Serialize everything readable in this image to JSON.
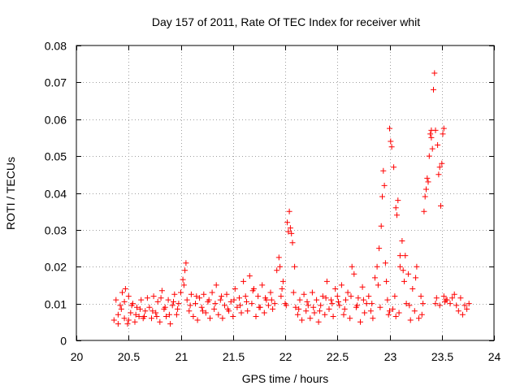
{
  "chart_data": {
    "type": "scatter",
    "title": "Day 157 of 2011, Rate Of TEC Index for receiver whit",
    "xlabel": "GPS time / hours",
    "ylabel": "ROTI / TECUs",
    "xlim": [
      20,
      24
    ],
    "ylim": [
      0,
      0.08
    ],
    "xticks": [
      20,
      20.5,
      21,
      21.5,
      22,
      22.5,
      23,
      23.5,
      24
    ],
    "xtick_labels": [
      "20",
      "20.5",
      "21",
      "21.5",
      "22",
      "22.5",
      "23",
      "23.5",
      "24"
    ],
    "yticks": [
      0,
      0.01,
      0.02,
      0.03,
      0.04,
      0.05,
      0.06,
      0.07,
      0.08
    ],
    "ytick_labels": [
      "0",
      "0.01",
      "0.02",
      "0.03",
      "0.04",
      "0.05",
      "0.06",
      "0.07",
      "0.08"
    ],
    "grid": true,
    "marker": "+",
    "series": [
      {
        "name": "ROTI",
        "color": "#ff0000",
        "x": [
          20.36,
          20.38,
          20.4,
          20.42,
          20.44,
          20.46,
          20.47,
          20.49,
          20.5,
          20.52,
          20.54,
          20.56,
          20.58,
          20.6,
          20.62,
          20.64,
          20.66,
          20.68,
          20.4,
          20.43,
          20.46,
          20.5,
          20.53,
          20.57,
          20.61,
          20.65,
          20.7,
          20.72,
          20.74,
          20.76,
          20.78,
          20.8,
          20.82,
          20.84,
          20.86,
          20.88,
          20.9,
          20.92,
          20.94,
          20.96,
          20.98,
          20.73,
          20.77,
          20.81,
          20.85,
          20.89,
          20.93,
          20.97,
          21.0,
          21.02,
          21.04,
          21.05,
          21.06,
          21.08,
          21.1,
          21.12,
          21.14,
          21.16,
          21.18,
          21.2,
          21.22,
          21.24,
          21.26,
          21.28,
          21.03,
          21.09,
          21.15,
          21.21,
          21.27,
          21.3,
          21.32,
          21.34,
          21.36,
          21.38,
          21.4,
          21.42,
          21.44,
          21.46,
          21.48,
          21.5,
          21.52,
          21.54,
          21.56,
          21.58,
          21.33,
          21.39,
          21.45,
          21.51,
          21.57,
          21.6,
          21.62,
          21.64,
          21.66,
          21.68,
          21.7,
          21.72,
          21.74,
          21.76,
          21.78,
          21.8,
          21.82,
          21.84,
          21.86,
          21.88,
          21.9,
          21.63,
          21.69,
          21.75,
          21.81,
          21.87,
          21.92,
          21.94,
          21.95,
          21.96,
          21.98,
          22.0,
          22.02,
          22.03,
          22.04,
          22.05,
          22.06,
          22.07,
          22.08,
          22.1,
          22.12,
          22.14,
          22.16,
          21.97,
          22.01,
          22.09,
          22.13,
          22.18,
          22.2,
          22.22,
          22.24,
          22.26,
          22.28,
          22.3,
          22.32,
          22.34,
          22.36,
          22.38,
          22.4,
          22.42,
          22.44,
          22.46,
          22.21,
          22.27,
          22.33,
          22.39,
          22.45,
          22.48,
          22.5,
          22.52,
          22.54,
          22.56,
          22.58,
          22.6,
          22.62,
          22.64,
          22.66,
          22.68,
          22.7,
          22.72,
          22.74,
          22.76,
          22.78,
          22.51,
          22.57,
          22.63,
          22.69,
          22.75,
          22.8,
          22.82,
          22.84,
          22.86,
          22.88,
          22.9,
          22.92,
          22.93,
          22.94,
          22.95,
          22.96,
          22.97,
          22.98,
          22.99,
          23.0,
          23.01,
          23.02,
          23.03,
          23.04,
          23.05,
          23.06,
          23.07,
          23.08,
          23.09,
          23.1,
          22.83,
          22.89,
          22.91,
          23.0,
          23.06,
          23.1,
          23.12,
          23.14,
          23.15,
          23.16,
          23.18,
          23.2,
          23.22,
          23.24,
          23.26,
          23.28,
          23.3,
          23.32,
          23.33,
          23.34,
          23.35,
          23.36,
          23.37,
          23.38,
          23.39,
          23.4,
          23.13,
          23.19,
          23.25,
          23.31,
          23.4,
          23.41,
          23.42,
          23.43,
          23.44,
          23.45,
          23.46,
          23.47,
          23.48,
          23.49,
          23.5,
          23.51,
          23.52,
          23.53,
          23.54,
          23.44,
          23.48,
          23.52,
          23.55,
          23.58,
          23.6,
          23.62,
          23.64,
          23.66,
          23.68,
          23.7,
          23.72,
          23.74,
          23.76
        ],
        "y": [
          0.0055,
          0.011,
          0.0045,
          0.0095,
          0.013,
          0.006,
          0.014,
          0.0045,
          0.012,
          0.0075,
          0.01,
          0.005,
          0.009,
          0.0065,
          0.011,
          0.006,
          0.008,
          0.0115,
          0.007,
          0.0085,
          0.0105,
          0.0055,
          0.0095,
          0.007,
          0.0085,
          0.0065,
          0.009,
          0.006,
          0.012,
          0.0075,
          0.0105,
          0.005,
          0.0135,
          0.0085,
          0.0065,
          0.011,
          0.0045,
          0.0095,
          0.0125,
          0.007,
          0.01,
          0.008,
          0.0065,
          0.0115,
          0.009,
          0.007,
          0.0105,
          0.0085,
          0.013,
          0.0165,
          0.019,
          0.021,
          0.011,
          0.008,
          0.0125,
          0.0065,
          0.01,
          0.0055,
          0.0115,
          0.009,
          0.0125,
          0.0075,
          0.0105,
          0.006,
          0.015,
          0.0095,
          0.012,
          0.008,
          0.011,
          0.013,
          0.0085,
          0.015,
          0.007,
          0.011,
          0.006,
          0.0095,
          0.0125,
          0.008,
          0.0105,
          0.0065,
          0.014,
          0.009,
          0.0115,
          0.0075,
          0.01,
          0.012,
          0.0085,
          0.011,
          0.0095,
          0.016,
          0.012,
          0.008,
          0.0175,
          0.01,
          0.014,
          0.0065,
          0.012,
          0.009,
          0.015,
          0.0075,
          0.011,
          0.0095,
          0.013,
          0.0085,
          0.01,
          0.0105,
          0.0135,
          0.009,
          0.0115,
          0.011,
          0.019,
          0.0225,
          0.02,
          0.012,
          0.016,
          0.01,
          0.032,
          0.0295,
          0.035,
          0.0305,
          0.029,
          0.0265,
          0.013,
          0.009,
          0.007,
          0.011,
          0.0055,
          0.014,
          0.0095,
          0.02,
          0.0085,
          0.0125,
          0.008,
          0.0095,
          0.006,
          0.013,
          0.0075,
          0.011,
          0.005,
          0.0095,
          0.012,
          0.007,
          0.016,
          0.0085,
          0.011,
          0.0065,
          0.0105,
          0.009,
          0.008,
          0.0115,
          0.01,
          0.014,
          0.012,
          0.0095,
          0.015,
          0.007,
          0.011,
          0.013,
          0.006,
          0.02,
          0.018,
          0.009,
          0.0115,
          0.005,
          0.0145,
          0.0075,
          0.01,
          0.0105,
          0.0085,
          0.012,
          0.0095,
          0.011,
          0.012,
          0.008,
          0.006,
          0.017,
          0.02,
          0.025,
          0.031,
          0.039,
          0.046,
          0.042,
          0.021,
          0.016,
          0.011,
          0.007,
          0.0575,
          0.054,
          0.0525,
          0.0085,
          0.047,
          0.012,
          0.036,
          0.034,
          0.038,
          0.0075,
          0.023,
          0.01,
          0.015,
          0.009,
          0.008,
          0.0065,
          0.02,
          0.027,
          0.016,
          0.023,
          0.01,
          0.018,
          0.0055,
          0.014,
          0.008,
          0.02,
          0.006,
          0.012,
          0.01,
          0.035,
          0.039,
          0.041,
          0.044,
          0.043,
          0.05,
          0.056,
          0.057,
          0.019,
          0.0095,
          0.017,
          0.007,
          0.055,
          0.052,
          0.068,
          0.0725,
          0.057,
          0.0115,
          0.053,
          0.045,
          0.047,
          0.0365,
          0.048,
          0.056,
          0.0575,
          0.0105,
          0.011,
          0.01,
          0.0095,
          0.012,
          0.011,
          0.01,
          0.0115,
          0.0125,
          0.0095,
          0.008,
          0.0115,
          0.007,
          0.0095,
          0.0085,
          0.01
        ]
      }
    ]
  }
}
